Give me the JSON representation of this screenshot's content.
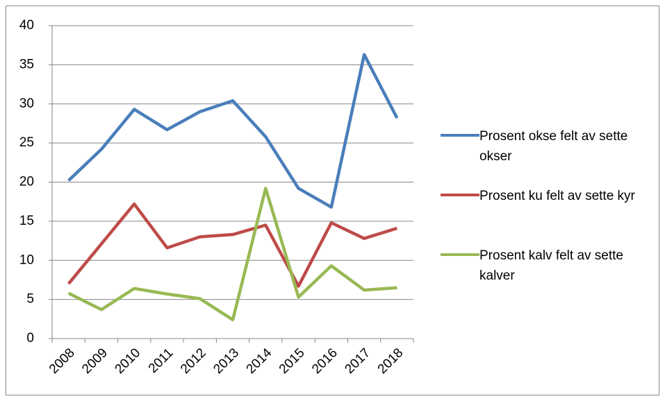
{
  "chart_data": {
    "type": "line",
    "categories": [
      "2008",
      "2009",
      "2010",
      "2011",
      "2012",
      "2013",
      "2014",
      "2015",
      "2016",
      "2017",
      "2018"
    ],
    "series": [
      {
        "name": "Prosent okse felt av sette okser",
        "color": "#4a7ebb",
        "values": [
          20.2,
          24.2,
          29.3,
          26.7,
          29.0,
          30.4,
          25.8,
          19.2,
          16.8,
          36.3,
          28.2
        ]
      },
      {
        "name": "Prosent ku felt av sette kyr",
        "color": "#be4b48",
        "values": [
          7.0,
          12.1,
          17.2,
          11.6,
          13.0,
          13.3,
          14.5,
          6.7,
          14.8,
          12.8,
          14.1
        ]
      },
      {
        "name": "Prosent kalv felt av sette kalver",
        "color": "#98b954",
        "values": [
          5.8,
          3.7,
          6.4,
          5.7,
          5.1,
          2.4,
          19.2,
          5.3,
          9.3,
          6.2,
          6.5
        ]
      }
    ],
    "ylim": [
      0,
      40
    ],
    "yticks": [
      0,
      5,
      10,
      15,
      20,
      25,
      30,
      35,
      40
    ],
    "grid": true,
    "legend": "right"
  }
}
